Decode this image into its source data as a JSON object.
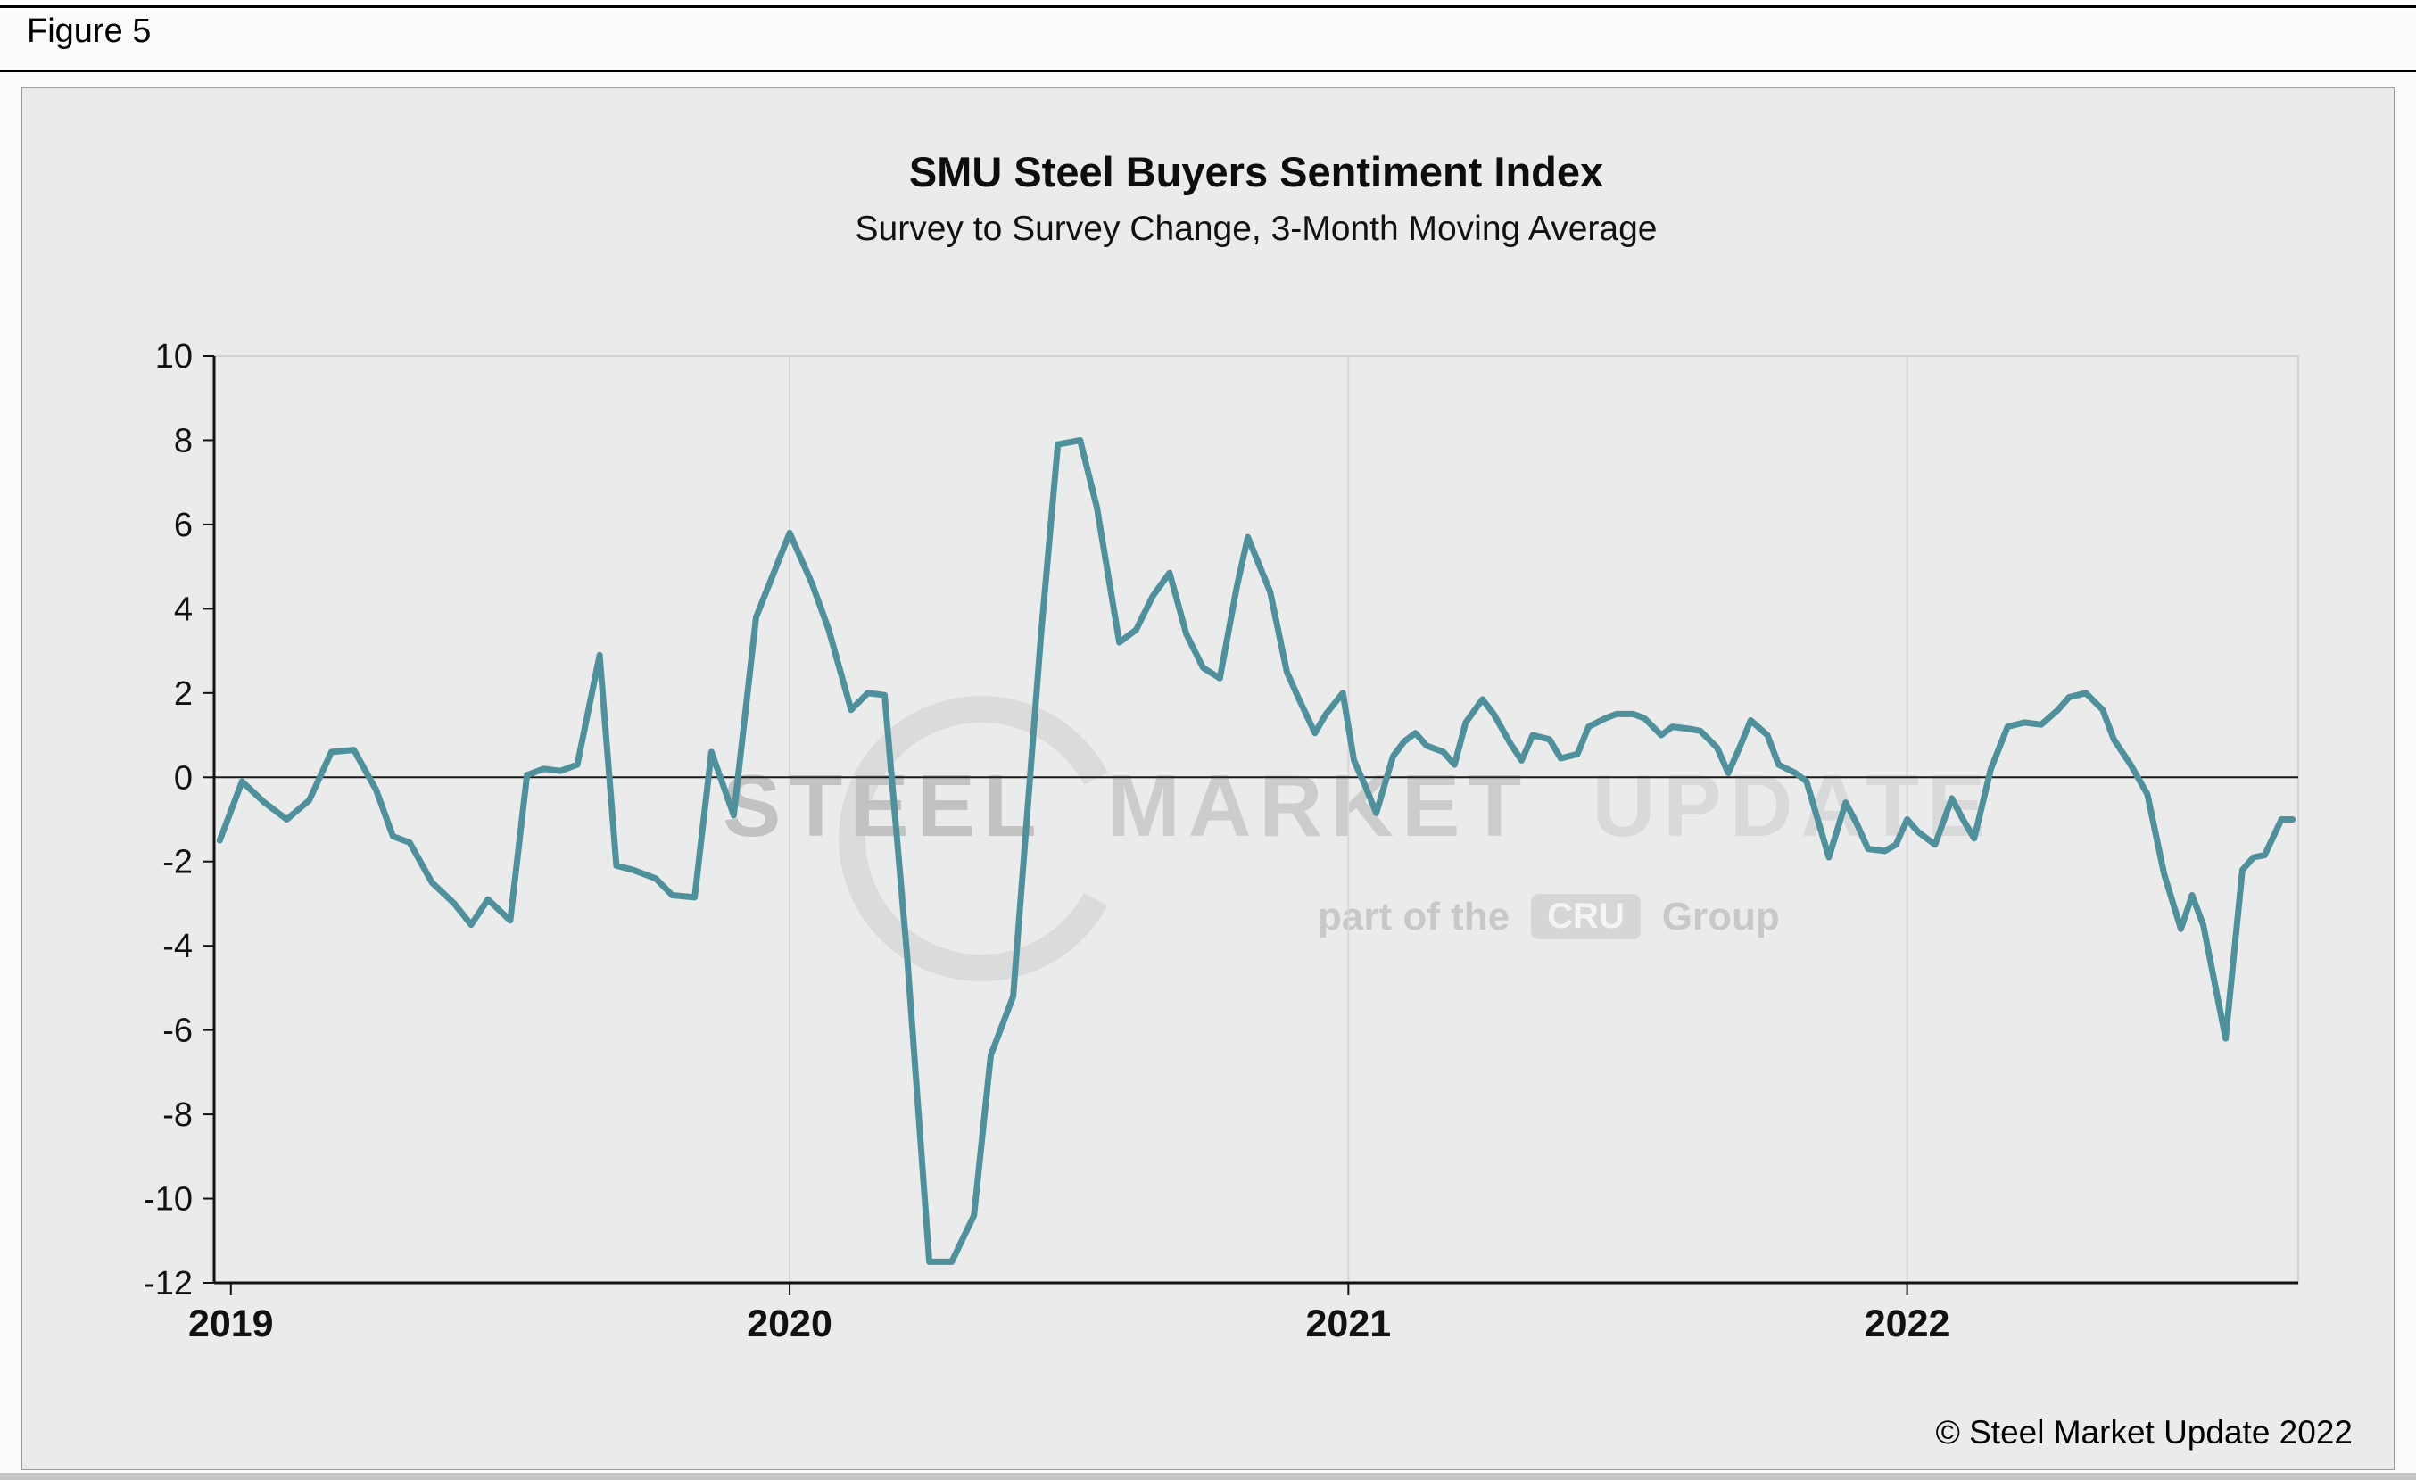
{
  "figure": {
    "label": "Figure 5"
  },
  "chart": {
    "title": "SMU Steel Buyers Sentiment Index",
    "subtitle": "Survey to Survey Change, 3-Month Moving Average"
  },
  "watermark": {
    "steel": "STEEL",
    "market": "MARKET",
    "update": "UPDATE",
    "part_of_the": "part of the",
    "cru": "CRU",
    "group": "Group"
  },
  "footer": {
    "copyright": "© Steel Market Update 2022"
  },
  "chart_data": {
    "type": "line",
    "title": "SMU Steel Buyers Sentiment Index",
    "subtitle": "Survey to Survey Change, 3-Month Moving Average",
    "xlabel": "",
    "ylabel": "",
    "xlim": [
      2018.97,
      2022.7
    ],
    "ylim": [
      -12,
      10
    ],
    "x_ticks": [
      2019,
      2020,
      2021,
      2022
    ],
    "y_ticks": [
      10,
      8,
      6,
      4,
      2,
      0,
      -2,
      -4,
      -6,
      -8,
      -10,
      -12
    ],
    "grid": "vertical-years",
    "zero_line": true,
    "legend": "none",
    "line_color": "#4e919d",
    "series": [
      {
        "name": "Survey to Survey Change, 3-Month Moving Average",
        "points": [
          [
            2018.98,
            -1.5
          ],
          [
            2019.02,
            -0.1
          ],
          [
            2019.06,
            -0.6
          ],
          [
            2019.1,
            -1.0
          ],
          [
            2019.14,
            -0.55
          ],
          [
            2019.18,
            0.6
          ],
          [
            2019.22,
            0.65
          ],
          [
            2019.26,
            -0.3
          ],
          [
            2019.29,
            -1.4
          ],
          [
            2019.32,
            -1.55
          ],
          [
            2019.36,
            -2.5
          ],
          [
            2019.4,
            -3.0
          ],
          [
            2019.43,
            -3.5
          ],
          [
            2019.46,
            -2.9
          ],
          [
            2019.5,
            -3.4
          ],
          [
            2019.53,
            0.05
          ],
          [
            2019.56,
            0.2
          ],
          [
            2019.59,
            0.15
          ],
          [
            2019.62,
            0.3
          ],
          [
            2019.66,
            2.9
          ],
          [
            2019.69,
            -2.1
          ],
          [
            2019.72,
            -2.2
          ],
          [
            2019.76,
            -2.4
          ],
          [
            2019.79,
            -2.8
          ],
          [
            2019.83,
            -2.85
          ],
          [
            2019.86,
            0.6
          ],
          [
            2019.9,
            -0.9
          ],
          [
            2019.94,
            3.8
          ],
          [
            2019.97,
            4.8
          ],
          [
            2020.0,
            5.8
          ],
          [
            2020.04,
            4.6
          ],
          [
            2020.07,
            3.5
          ],
          [
            2020.11,
            1.6
          ],
          [
            2020.14,
            2.0
          ],
          [
            2020.17,
            1.95
          ],
          [
            2020.21,
            -4.2
          ],
          [
            2020.25,
            -11.5
          ],
          [
            2020.29,
            -11.5
          ],
          [
            2020.33,
            -10.4
          ],
          [
            2020.36,
            -6.6
          ],
          [
            2020.4,
            -5.2
          ],
          [
            2020.45,
            3.4
          ],
          [
            2020.48,
            7.9
          ],
          [
            2020.52,
            8.0
          ],
          [
            2020.55,
            6.4
          ],
          [
            2020.59,
            3.2
          ],
          [
            2020.62,
            3.5
          ],
          [
            2020.65,
            4.3
          ],
          [
            2020.68,
            4.85
          ],
          [
            2020.71,
            3.4
          ],
          [
            2020.74,
            2.6
          ],
          [
            2020.77,
            2.35
          ],
          [
            2020.8,
            4.5
          ],
          [
            2020.82,
            5.7
          ],
          [
            2020.86,
            4.4
          ],
          [
            2020.89,
            2.5
          ],
          [
            2020.91,
            1.9
          ],
          [
            2020.94,
            1.05
          ],
          [
            2020.96,
            1.5
          ],
          [
            2020.99,
            2.0
          ],
          [
            2021.01,
            0.4
          ],
          [
            2021.03,
            -0.2
          ],
          [
            2021.05,
            -0.85
          ],
          [
            2021.08,
            0.5
          ],
          [
            2021.1,
            0.85
          ],
          [
            2021.12,
            1.05
          ],
          [
            2021.14,
            0.75
          ],
          [
            2021.17,
            0.6
          ],
          [
            2021.19,
            0.3
          ],
          [
            2021.21,
            1.3
          ],
          [
            2021.24,
            1.85
          ],
          [
            2021.26,
            1.5
          ],
          [
            2021.29,
            0.8
          ],
          [
            2021.31,
            0.4
          ],
          [
            2021.33,
            1.0
          ],
          [
            2021.36,
            0.9
          ],
          [
            2021.38,
            0.45
          ],
          [
            2021.41,
            0.55
          ],
          [
            2021.43,
            1.2
          ],
          [
            2021.46,
            1.4
          ],
          [
            2021.48,
            1.5
          ],
          [
            2021.51,
            1.5
          ],
          [
            2021.53,
            1.4
          ],
          [
            2021.56,
            1.0
          ],
          [
            2021.58,
            1.2
          ],
          [
            2021.61,
            1.15
          ],
          [
            2021.63,
            1.1
          ],
          [
            2021.66,
            0.7
          ],
          [
            2021.68,
            0.1
          ],
          [
            2021.7,
            0.7
          ],
          [
            2021.72,
            1.35
          ],
          [
            2021.75,
            1.0
          ],
          [
            2021.77,
            0.3
          ],
          [
            2021.8,
            0.1
          ],
          [
            2021.82,
            -0.1
          ],
          [
            2021.84,
            -1.0
          ],
          [
            2021.86,
            -1.9
          ],
          [
            2021.89,
            -0.6
          ],
          [
            2021.91,
            -1.1
          ],
          [
            2021.93,
            -1.7
          ],
          [
            2021.96,
            -1.75
          ],
          [
            2021.98,
            -1.6
          ],
          [
            2022.0,
            -1.0
          ],
          [
            2022.02,
            -1.3
          ],
          [
            2022.05,
            -1.6
          ],
          [
            2022.08,
            -0.5
          ],
          [
            2022.1,
            -1.0
          ],
          [
            2022.12,
            -1.45
          ],
          [
            2022.15,
            0.2
          ],
          [
            2022.18,
            1.2
          ],
          [
            2022.21,
            1.3
          ],
          [
            2022.24,
            1.25
          ],
          [
            2022.27,
            1.6
          ],
          [
            2022.29,
            1.9
          ],
          [
            2022.32,
            2.0
          ],
          [
            2022.35,
            1.6
          ],
          [
            2022.37,
            0.9
          ],
          [
            2022.4,
            0.3
          ],
          [
            2022.43,
            -0.4
          ],
          [
            2022.46,
            -2.3
          ],
          [
            2022.49,
            -3.6
          ],
          [
            2022.51,
            -2.8
          ],
          [
            2022.53,
            -3.5
          ],
          [
            2022.57,
            -6.2
          ],
          [
            2022.6,
            -2.2
          ],
          [
            2022.62,
            -1.9
          ],
          [
            2022.64,
            -1.85
          ],
          [
            2022.67,
            -1.0
          ],
          [
            2022.69,
            -1.0
          ]
        ]
      }
    ]
  }
}
